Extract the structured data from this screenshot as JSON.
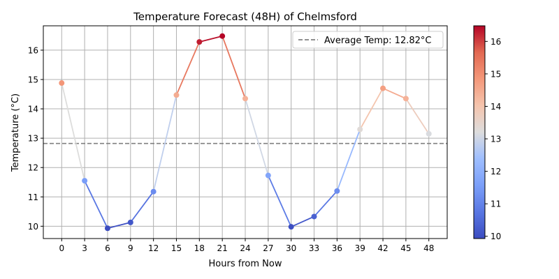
{
  "chart_data": {
    "type": "line",
    "title": "Temperature Forecast (48H) of Chelmsford",
    "xlabel": "Hours from Now",
    "ylabel": "Temperature (°C)",
    "x": [
      0,
      3,
      6,
      9,
      12,
      15,
      18,
      21,
      24,
      27,
      30,
      33,
      36,
      39,
      42,
      45,
      48
    ],
    "series": [
      {
        "values": [
          14.88,
          11.55,
          9.93,
          10.13,
          11.18,
          14.47,
          16.28,
          16.48,
          14.35,
          11.73,
          9.98,
          10.33,
          11.2,
          13.3,
          14.7,
          14.35,
          13.15
        ]
      }
    ],
    "x_ticks": [
      "0",
      "3",
      "6",
      "9",
      "12",
      "15",
      "18",
      "21",
      "24",
      "27",
      "30",
      "33",
      "36",
      "39",
      "42",
      "45",
      "48"
    ],
    "y_ticks": [
      "10",
      "11",
      "12",
      "13",
      "14",
      "15",
      "16"
    ],
    "ylim": [
      9.58,
      16.83
    ],
    "xlim": [
      -2.4,
      50.4
    ],
    "grid": true,
    "reference_line": {
      "value": 12.82,
      "label": "Average Temp: 12.82°C",
      "color": "#808080",
      "style": "dashed"
    },
    "legend": {
      "placement": "top-right",
      "entries": [
        "Average Temp: 12.82°C"
      ]
    },
    "colorbar": {
      "colormap": "coolwarm",
      "min": 9.93,
      "max": 16.48,
      "ticks": [
        "10",
        "11",
        "12",
        "13",
        "14",
        "15",
        "16"
      ]
    }
  }
}
